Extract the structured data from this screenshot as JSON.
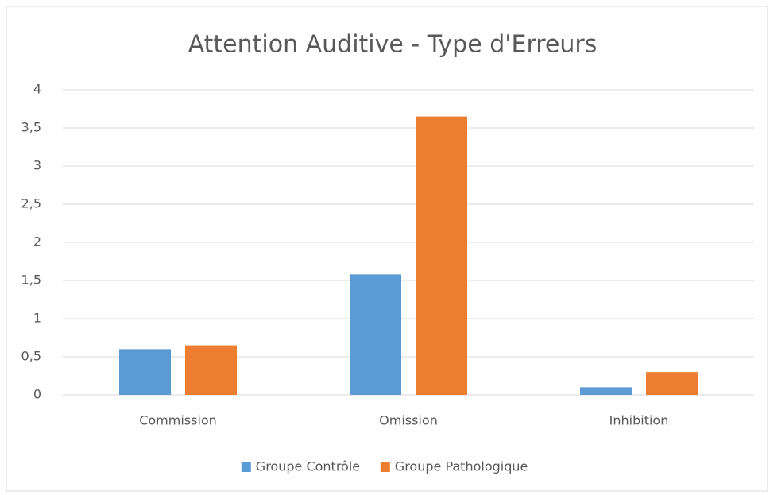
{
  "chart_data": {
    "type": "bar",
    "title": "Attention Auditive - Type d'Erreurs",
    "categories": [
      "Commission",
      "Omission",
      "Inhibition"
    ],
    "series": [
      {
        "name": "Groupe Contrôle",
        "color": "#5b9bd5",
        "values": [
          0.6,
          1.58,
          0.1
        ]
      },
      {
        "name": "Groupe Pathologique",
        "color": "#ed7d31",
        "values": [
          0.65,
          3.65,
          0.3
        ]
      }
    ],
    "ylim": [
      0,
      4
    ],
    "yticks": [
      0,
      {
        "value": 0.5,
        "label": "0,5"
      },
      1,
      {
        "value": 1.5,
        "label": "1,5"
      },
      2,
      {
        "value": 2.5,
        "label": "2,5"
      },
      3,
      {
        "value": 3.5,
        "label": "3,5"
      },
      4
    ],
    "grid": true,
    "legend": "bottom"
  }
}
